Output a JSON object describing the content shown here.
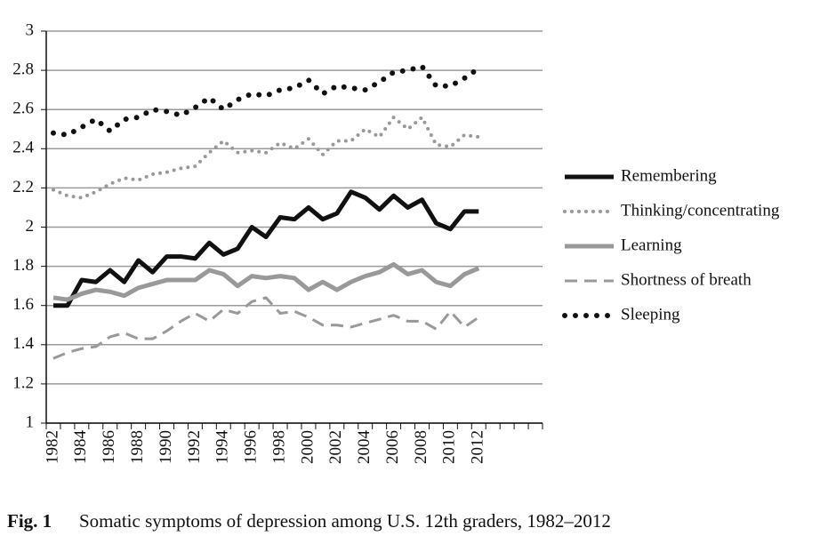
{
  "chart_data": {
    "type": "line",
    "categories": [
      "1982",
      null,
      "1984",
      null,
      "1986",
      null,
      "1988",
      null,
      "1990",
      null,
      "1992",
      null,
      "1994",
      null,
      "1996",
      null,
      "1998",
      null,
      "2000",
      null,
      "2002",
      null,
      "2004",
      null,
      "2006",
      null,
      "2008",
      null,
      "2010",
      null,
      "2012",
      null,
      null,
      null,
      null
    ],
    "ylim": [
      1,
      3
    ],
    "yticks": [
      1,
      1.2,
      1.4,
      1.6,
      1.8,
      2,
      2.2,
      2.4,
      2.6,
      2.8,
      3
    ],
    "grid": true,
    "legend": "right",
    "series": [
      {
        "name": "Remembering",
        "color": "#111111",
        "style": "solid",
        "width": 5,
        "values": [
          1.6,
          1.6,
          1.73,
          1.72,
          1.78,
          1.72,
          1.83,
          1.77,
          1.85,
          1.85,
          1.84,
          1.92,
          1.86,
          1.89,
          2.0,
          1.95,
          2.05,
          2.04,
          2.1,
          2.04,
          2.07,
          2.18,
          2.15,
          2.09,
          2.16,
          2.1,
          2.14,
          2.02,
          1.99,
          2.08,
          2.08,
          null,
          null,
          null,
          null
        ]
      },
      {
        "name": "Thinking/concentrating",
        "color": "#999999",
        "style": "dotted",
        "width": 4,
        "values": [
          2.19,
          2.16,
          2.15,
          2.18,
          2.22,
          2.25,
          2.24,
          2.27,
          2.28,
          2.3,
          2.31,
          2.38,
          2.44,
          2.38,
          2.39,
          2.38,
          2.43,
          2.4,
          2.45,
          2.37,
          2.44,
          2.44,
          2.5,
          2.46,
          2.56,
          2.5,
          2.56,
          2.42,
          2.41,
          2.47,
          2.46,
          null,
          null,
          null,
          null
        ]
      },
      {
        "name": "Learning",
        "color": "#999999",
        "style": "solid",
        "width": 5,
        "values": [
          1.64,
          1.63,
          1.66,
          1.68,
          1.67,
          1.65,
          1.69,
          1.71,
          1.73,
          1.73,
          1.73,
          1.78,
          1.76,
          1.7,
          1.75,
          1.74,
          1.75,
          1.74,
          1.68,
          1.72,
          1.68,
          1.72,
          1.75,
          1.77,
          1.81,
          1.76,
          1.78,
          1.72,
          1.7,
          1.76,
          1.79,
          null,
          null,
          null,
          null
        ]
      },
      {
        "name": "Shortness of breath",
        "color": "#999999",
        "style": "dashed",
        "width": 3,
        "values": [
          1.33,
          1.36,
          1.38,
          1.39,
          1.44,
          1.46,
          1.43,
          1.43,
          1.47,
          1.52,
          1.56,
          1.52,
          1.58,
          1.56,
          1.62,
          1.64,
          1.56,
          1.57,
          1.54,
          1.5,
          1.5,
          1.49,
          1.51,
          1.53,
          1.55,
          1.52,
          1.52,
          1.48,
          1.57,
          1.49,
          1.54,
          null,
          null,
          null,
          null
        ]
      },
      {
        "name": "Sleeping",
        "color": "#111111",
        "style": "dotted",
        "width": 6,
        "values": [
          2.48,
          2.47,
          2.51,
          2.55,
          2.49,
          2.55,
          2.56,
          2.6,
          2.59,
          2.57,
          2.61,
          2.66,
          2.6,
          2.65,
          2.68,
          2.67,
          2.7,
          2.71,
          2.75,
          2.68,
          2.72,
          2.71,
          2.7,
          2.74,
          2.79,
          2.8,
          2.82,
          2.72,
          2.72,
          2.76,
          2.81,
          null,
          null,
          null,
          null
        ]
      }
    ],
    "caption_label": "Fig. 1",
    "caption": "Somatic symptoms of depression among U.S. 12th graders, 1982–2012"
  }
}
